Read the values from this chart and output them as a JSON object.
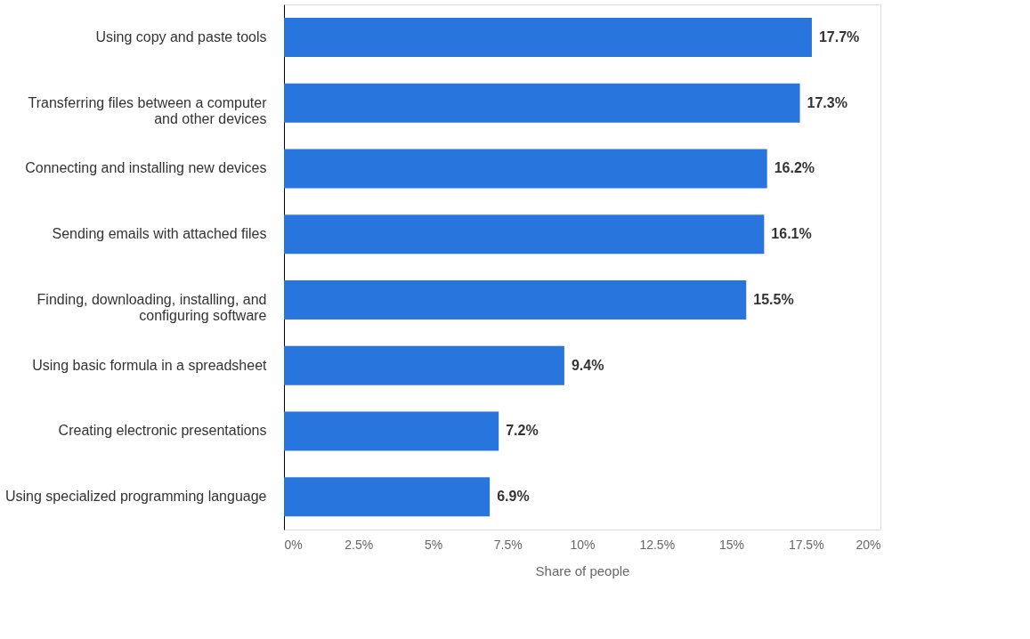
{
  "chart_data": {
    "type": "bar",
    "orientation": "horizontal",
    "xlabel": "Share of people",
    "categories": [
      "Using copy and paste tools",
      "Transferring files between a computer and other devices",
      "Connecting and installing new devices",
      "Sending emails with attached files",
      "Finding, downloading, installing, and configuring software",
      "Using basic formula in a spreadsheet",
      "Creating electronic presentations",
      "Using specialized programming language"
    ],
    "values": [
      17.7,
      17.3,
      16.2,
      16.1,
      15.5,
      9.4,
      7.2,
      6.9
    ],
    "value_labels": [
      "17.7%",
      "17.3%",
      "16.2%",
      "16.1%",
      "15.5%",
      "9.4%",
      "7.2%",
      "6.9%"
    ],
    "color": "#2876dd",
    "xlim": [
      0,
      20
    ],
    "xticks": [
      {
        "value": 0,
        "label": "0%"
      },
      {
        "value": 2.5,
        "label": "2.5%"
      },
      {
        "value": 5,
        "label": "5%"
      },
      {
        "value": 7.5,
        "label": "7.5%"
      },
      {
        "value": 10,
        "label": "10%"
      },
      {
        "value": 12.5,
        "label": "12.5%"
      },
      {
        "value": 15,
        "label": "15%"
      },
      {
        "value": 17.5,
        "label": "17.5%"
      },
      {
        "value": 20,
        "label": "20%"
      }
    ],
    "grid": false
  }
}
